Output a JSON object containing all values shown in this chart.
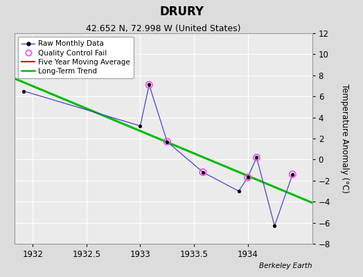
{
  "title": "DRURY",
  "subtitle": "42.652 N, 72.998 W (United States)",
  "ylabel": "Temperature Anomaly (°C)",
  "attribution": "Berkeley Earth",
  "xlim": [
    1931.83,
    1934.6
  ],
  "ylim": [
    -8,
    12
  ],
  "yticks": [
    -8,
    -6,
    -4,
    -2,
    0,
    2,
    4,
    6,
    8,
    10,
    12
  ],
  "xticks": [
    1932,
    1932.5,
    1933,
    1933.5,
    1934
  ],
  "background_color": "#dcdcdc",
  "plot_background": "#ebebeb",
  "raw_data_x": [
    1931.917,
    1933.0,
    1933.083,
    1933.25,
    1933.583,
    1933.917,
    1934.0,
    1934.083,
    1934.25,
    1934.417
  ],
  "raw_data_y": [
    6.5,
    3.2,
    7.1,
    1.7,
    -1.2,
    -3.0,
    -1.7,
    0.2,
    -6.3,
    -1.4
  ],
  "qc_fail_x": [
    1933.083,
    1933.25,
    1933.583,
    1934.0,
    1934.083,
    1934.417
  ],
  "qc_fail_y": [
    7.1,
    1.7,
    -1.2,
    -1.7,
    0.2,
    -1.4
  ],
  "trend_x": [
    1931.83,
    1934.6
  ],
  "trend_y": [
    7.7,
    -4.1
  ],
  "raw_line_color": "#4444cc",
  "raw_marker_color": "#000000",
  "qc_color": "#ff44ff",
  "trend_color": "#00bb00",
  "moving_avg_color": "#dd0000",
  "legend_bg": "#ffffff",
  "title_fontsize": 12,
  "subtitle_fontsize": 9,
  "tick_fontsize": 8.5,
  "ylabel_fontsize": 8.5,
  "legend_fontsize": 7.5,
  "attribution_fontsize": 7.5
}
